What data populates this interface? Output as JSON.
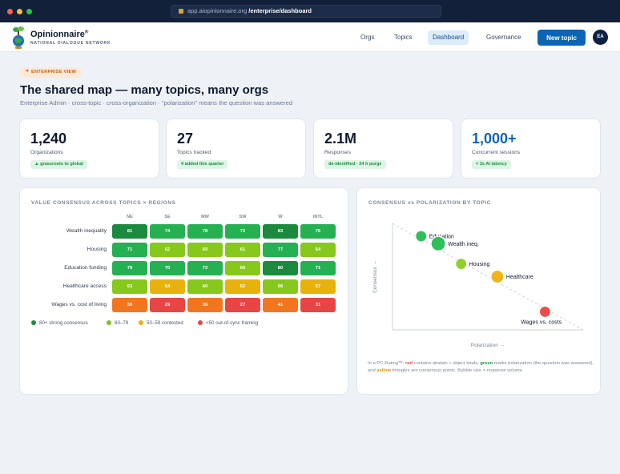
{
  "browser": {
    "url_host": "app.aiopinionnaire.org",
    "url_path": "/enterprise/dashboard"
  },
  "header": {
    "brand": "Opinionnaire",
    "brand_mark": "®",
    "brand_sub": "NATIONAL DIALOGUE NETWORK",
    "nav": [
      "Orgs",
      "Topics",
      "Dashboard",
      "Governance"
    ],
    "active_nav": "Dashboard",
    "new_topic": "New topic",
    "avatar": "EA"
  },
  "page": {
    "pill": "ENTERPRISE VIEW",
    "title": "The shared map — many topics, many orgs",
    "subtitle": "Enterprise Admin · cross-topic · cross-organization · \"polarization\" means the question was answered"
  },
  "kpis": [
    {
      "value": "1,240",
      "label": "Organizations",
      "badge": "▲ grassroots to global"
    },
    {
      "value": "27",
      "label": "Topics tracked",
      "badge": "4 added this quarter"
    },
    {
      "value": "2.1M",
      "label": "Responses",
      "badge": "de-identified · 24 h purge"
    },
    {
      "value": "1,000+",
      "label": "Concurrent sessions",
      "badge": "< 3s AI latency"
    }
  ],
  "heatmap": {
    "title": "VALUE CONSENSUS ACROSS TOPICS × REGIONS",
    "regions": [
      "NE",
      "SE",
      "MW",
      "SW",
      "W",
      "INTL"
    ],
    "rows": [
      {
        "topic": "Wealth inequality",
        "values": [
          81,
          74,
          78,
          72,
          83,
          76
        ]
      },
      {
        "topic": "Housing",
        "values": [
          71,
          62,
          69,
          61,
          77,
          64
        ]
      },
      {
        "topic": "Education funding",
        "values": [
          79,
          70,
          73,
          66,
          80,
          71
        ]
      },
      {
        "topic": "Healthcare access",
        "values": [
          63,
          54,
          60,
          52,
          66,
          57
        ]
      },
      {
        "topic": "Wages vs. cost of living",
        "values": [
          38,
          29,
          35,
          27,
          41,
          31
        ]
      }
    ],
    "legend": [
      {
        "label": "80+ strong consensus",
        "color": "#1b8a3e"
      },
      {
        "label": "60–79",
        "color": "#7cc61f"
      },
      {
        "label": "50–59 contested",
        "color": "#e8b20c"
      },
      {
        "label": "<50 out-of-sync framing",
        "color": "#e84545"
      }
    ]
  },
  "chart_data": {
    "type": "scatter",
    "title": "CONSENSUS vs POLARIZATION BY TOPIC",
    "xlabel": "Polarization →",
    "ylabel": "Consensus →",
    "points": [
      {
        "label": "Education",
        "consensus": 0.88,
        "polarization": 0.15,
        "size": 7,
        "color": "#2fbf5a"
      },
      {
        "label": "Wealth ineq.",
        "consensus": 0.81,
        "polarization": 0.24,
        "size": 9,
        "color": "#2fbf5a"
      },
      {
        "label": "Housing",
        "consensus": 0.62,
        "polarization": 0.36,
        "size": 7,
        "color": "#8fd12a"
      },
      {
        "label": "Healthcare",
        "consensus": 0.5,
        "polarization": 0.55,
        "size": 8,
        "color": "#f0b31a"
      },
      {
        "label": "Wages vs. costs",
        "consensus": 0.17,
        "polarization": 0.8,
        "size": 7,
        "color": "#ef4b4b"
      }
    ],
    "trend_line": true
  },
  "caption": {
    "p1": "In a PC-Rating™: ",
    "red": "red",
    "p2": " contains abstain + object totals, ",
    "green": "green",
    "p3": " marks polarization (the question was answered), and ",
    "yellow": "yellow",
    "p4": " triangles are consensus points. Bubble size = response volume."
  }
}
